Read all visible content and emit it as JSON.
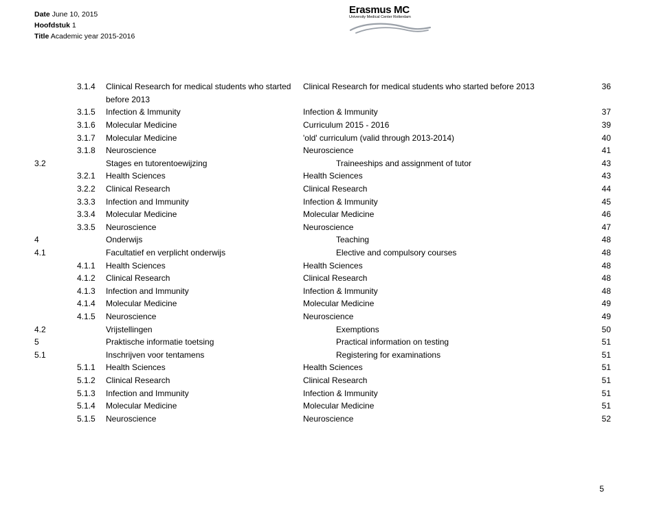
{
  "header": {
    "date_label": "Date",
    "date_value": "June 10, 2015",
    "chapter_label": "Hoofdstuk",
    "chapter_value": "1",
    "title_label": "Title",
    "title_value": "Academic year 2015-2016"
  },
  "logo": {
    "name": "Erasmus MC",
    "subtitle": "University Medical Center Rotterdam"
  },
  "toc": [
    {
      "ind": 2,
      "num": "3.1.4",
      "sub": "",
      "dutch": "Clinical Research for medical students who started before 2013",
      "eng": "Clinical Research for medical students who started before 2013",
      "page": "36"
    },
    {
      "ind": 2,
      "num": "3.1.5",
      "sub": "",
      "dutch": "Infection & Immunity",
      "eng": "Infection & Immunity",
      "page": "37"
    },
    {
      "ind": 2,
      "num": "3.1.6",
      "sub": "",
      "dutch": "Molecular Medicine",
      "eng": "Curriculum 2015 - 2016",
      "page": "39"
    },
    {
      "ind": 2,
      "num": "3.1.7",
      "sub": "",
      "dutch": "Molecular Medicine",
      "eng": "'old' curriculum (valid through 2013-2014)",
      "page": "40"
    },
    {
      "ind": 2,
      "num": "3.1.8",
      "sub": "",
      "dutch": "Neuroscience",
      "eng": "Neuroscience",
      "page": "41"
    },
    {
      "ind": 0,
      "num": "3.2",
      "sub": "",
      "dutch": "Stages en tutorentoewijzing",
      "eng": "Traineeships and assignment  of tutor",
      "page": "43"
    },
    {
      "ind": 2,
      "num": "3.2.1",
      "sub": "",
      "dutch": "Health Sciences",
      "eng": "Health Sciences",
      "page": "43"
    },
    {
      "ind": 2,
      "num": "3.2.2",
      "sub": "",
      "dutch": "Clinical Research",
      "eng": "Clinical Research",
      "page": "44"
    },
    {
      "ind": 2,
      "num": "3.3.3",
      "sub": "",
      "dutch": "Infection and Immunity",
      "eng": "Infection & Immunity",
      "page": "45"
    },
    {
      "ind": 2,
      "num": "3.3.4",
      "sub": "",
      "dutch": "Molecular Medicine",
      "eng": "Molecular Medicine",
      "page": "46"
    },
    {
      "ind": 2,
      "num": "3.3.5",
      "sub": "",
      "dutch": "Neuroscience",
      "eng": "Neuroscience",
      "page": "47"
    },
    {
      "ind": 0,
      "num": "4",
      "sub": "",
      "dutch": "Onderwijs",
      "eng": "Teaching",
      "page": "48"
    },
    {
      "ind": 0,
      "num": "4.1",
      "sub": "",
      "dutch": "Facultatief en verplicht onderwijs",
      "eng": "Elective and compulsory courses",
      "page": "48"
    },
    {
      "ind": 2,
      "num": "4.1.1",
      "sub": "",
      "dutch": "Health Sciences",
      "eng": "Health Sciences",
      "page": "48"
    },
    {
      "ind": 2,
      "num": "4.1.2",
      "sub": "",
      "dutch": "Clinical Research",
      "eng": "Clinical Research",
      "page": "48"
    },
    {
      "ind": 2,
      "num": "4.1.3",
      "sub": "",
      "dutch": "Infection and Immunity",
      "eng": "Infection & Immunity",
      "page": "48"
    },
    {
      "ind": 2,
      "num": "4.1.4",
      "sub": "",
      "dutch": "Molecular Medicine",
      "eng": "Molecular Medicine",
      "page": "49"
    },
    {
      "ind": 2,
      "num": "4.1.5",
      "sub": "",
      "dutch": "Neuroscience",
      "eng": "Neuroscience",
      "page": "49"
    },
    {
      "ind": 0,
      "num": "4.2",
      "sub": "",
      "dutch": "Vrijstellingen",
      "eng": "Exemptions",
      "page": "50"
    },
    {
      "ind": 0,
      "num": "5",
      "sub": "",
      "dutch": "Praktische informatie  toetsing",
      "eng": "Practical information  on testing",
      "page": "51"
    },
    {
      "ind": 0,
      "num": "5.1",
      "sub": "",
      "dutch": "Inschrijven voor tentamens",
      "eng": "Registering for examinations",
      "page": "51"
    },
    {
      "ind": 2,
      "num": "5.1.1",
      "sub": "",
      "dutch": "Health Sciences",
      "eng": "Health Sciences",
      "page": "51"
    },
    {
      "ind": 2,
      "num": "5.1.2",
      "sub": "",
      "dutch": "Clinical Research",
      "eng": "Clinical Research",
      "page": "51"
    },
    {
      "ind": 2,
      "num": "5.1.3",
      "sub": "",
      "dutch": "Infection and Immunity",
      "eng": "Infection & Immunity",
      "page": "51"
    },
    {
      "ind": 2,
      "num": "5.1.4",
      "sub": "",
      "dutch": "Molecular Medicine",
      "eng": "Molecular Medicine",
      "page": "51"
    },
    {
      "ind": 2,
      "num": "5.1.5",
      "sub": "",
      "dutch": "Neuroscience",
      "eng": "Neuroscience",
      "page": "52"
    }
  ],
  "page_number": "5"
}
